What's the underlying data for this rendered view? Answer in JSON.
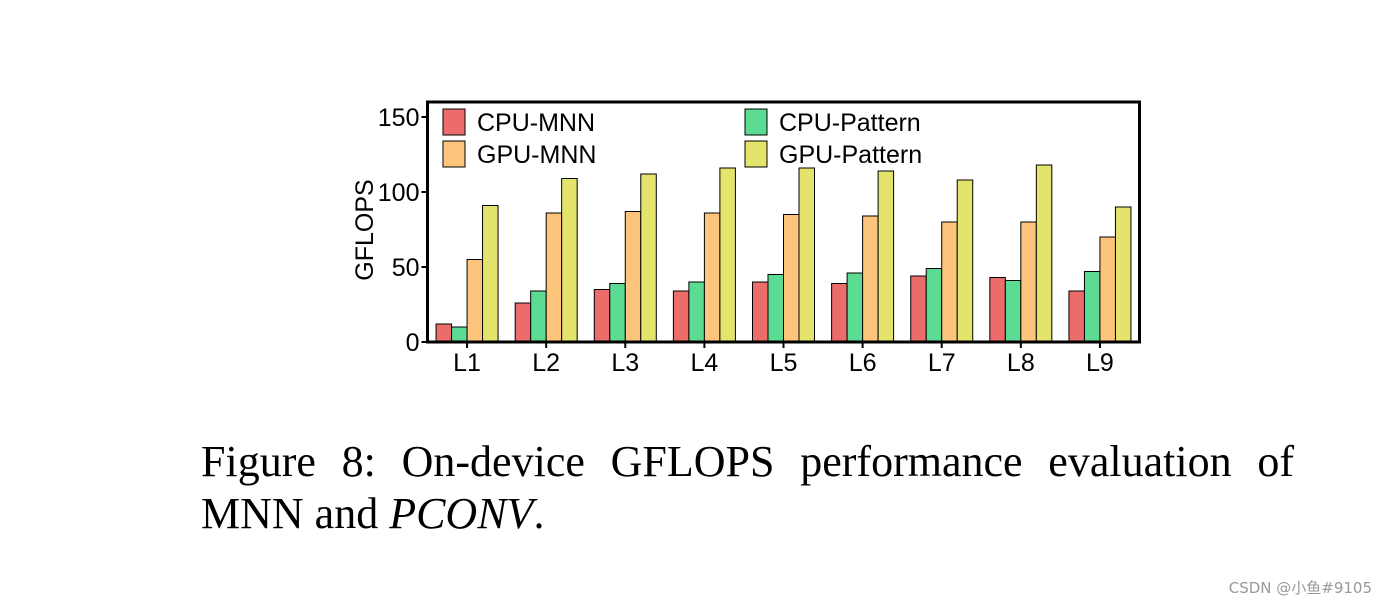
{
  "chart_data": {
    "type": "bar",
    "title": "",
    "xlabel": "",
    "ylabel": "GFLOPS",
    "ylim": [
      0,
      160
    ],
    "yticks": [
      "0",
      "50",
      "100",
      "150"
    ],
    "categories": [
      "L1",
      "L2",
      "L3",
      "L4",
      "L5",
      "L6",
      "L7",
      "L8",
      "L9"
    ],
    "series": [
      {
        "name": "CPU-MNN",
        "color": "#ec6b6b",
        "values": [
          12,
          26,
          35,
          34,
          40,
          39,
          44,
          43,
          34
        ]
      },
      {
        "name": "CPU-Pattern",
        "color": "#5cdc92",
        "values": [
          10,
          34,
          39,
          40,
          45,
          46,
          49,
          41,
          47
        ]
      },
      {
        "name": "GPU-MNN",
        "color": "#fdc47c",
        "values": [
          55,
          86,
          87,
          86,
          85,
          84,
          80,
          80,
          70
        ]
      },
      {
        "name": "GPU-Pattern",
        "color": "#e4e46c",
        "values": [
          91,
          109,
          112,
          116,
          116,
          114,
          108,
          118,
          90
        ]
      }
    ],
    "legend_position": "top, inside plot, two columns",
    "grid": false
  },
  "caption": {
    "main": "Figure 8: On-device GFLOPS performance evaluation of MNN and ",
    "emphasis": "PCONV",
    "end": "."
  },
  "watermark": "CSDN @小鱼#9105"
}
